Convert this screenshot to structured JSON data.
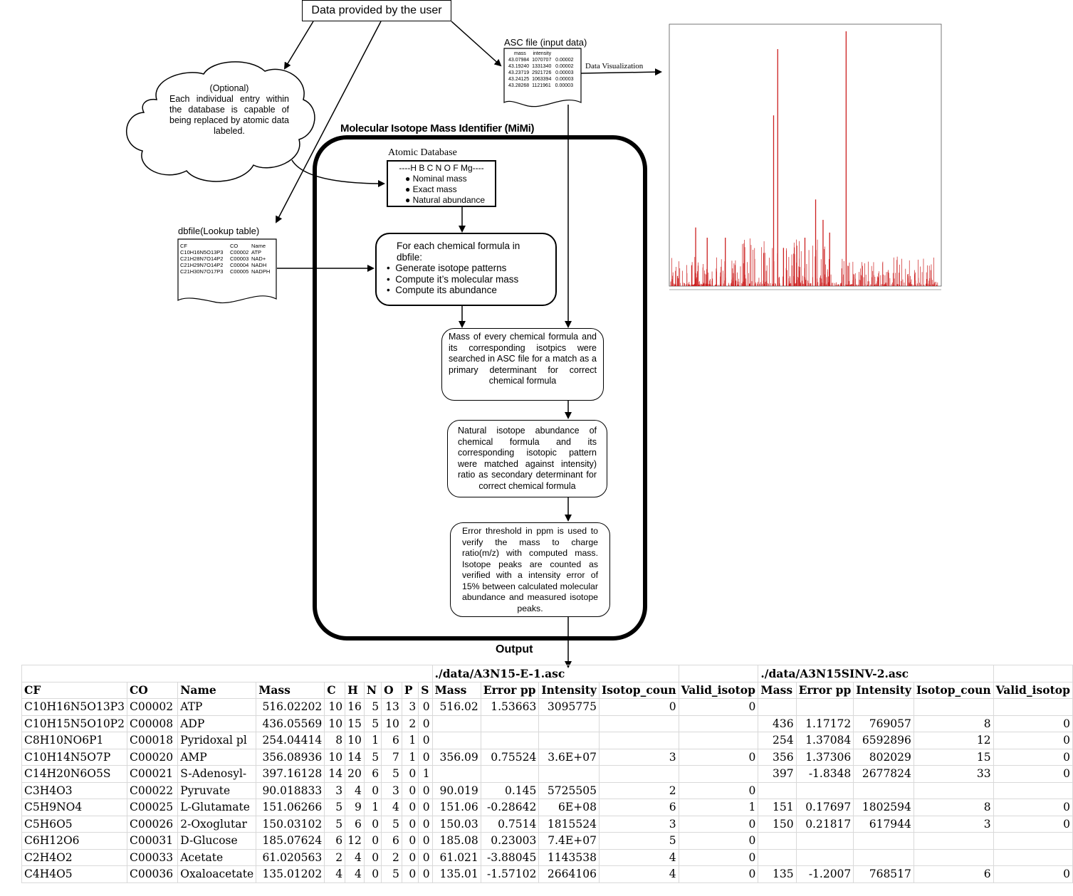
{
  "user_data_box": "Data provided by the user",
  "asc_file": {
    "title": "ASC file (input  data)",
    "header": "mass     intensity",
    "rows": [
      "43.07984  1070707   0.00002",
      "43.19240  1331340   0.00002",
      "43.23719  2921726   0.00003",
      "43.24125  1063394   0.00003",
      "43.28268  1121961   0.00003"
    ]
  },
  "data_visualization_label": "Data Visualization",
  "optional_cloud": {
    "heading": "(Optional)",
    "body": "Each individual entry within the database is capable of being replaced by atomic data labeled."
  },
  "mimi_title": "Molecular Isotope Mass Identifier (MiMi)",
  "atomic_database": {
    "title": "Atomic Database",
    "elements": "H B C N O F Mg",
    "items": [
      "Nominal mass",
      "Exact mass",
      "Natural abundance"
    ]
  },
  "dbfile": {
    "title": "dbfile(Lookup table)",
    "header": [
      "CF",
      "CO",
      "Name"
    ],
    "rows": [
      [
        "C10H16N5O13P3",
        "C00002",
        "ATP"
      ],
      [
        "C21H28N7O14P2",
        "C00003",
        "NAD+"
      ],
      [
        "C21H29N7O14P2",
        "C00004",
        "NADH"
      ],
      [
        "C21H30N7O17P3",
        "C00005",
        "NADPH"
      ]
    ]
  },
  "steps": {
    "step1_heading": "For each chemical formula in dbfile:",
    "step1_bullets": [
      "Generate isotope patterns",
      "Compute it’s molecular mass",
      "Compute its abundance"
    ],
    "step2": "Mass of every chemical formula and its corresponding isotpics were searched in ASC file for a match as a primary determinant for correct chemical formula",
    "step3": "Natural isotope abundance of chemical formula and its corresponding isotopic pattern were matched against intensity) ratio as secondary determinant for correct chemical formula",
    "step4": "Error threshold in ppm is used to verify the mass to charge ratio(m/z) with computed mass. Isotope peaks are counted as verified with a intensity error of 15% between calculated molecular abundance and measured isotope peaks."
  },
  "output_label": "Output",
  "colors": {
    "spectrum": "#cc1f1f",
    "border": "#000000",
    "grid": "#d9d9d9"
  },
  "table": {
    "file1": "./data/A3N15-E-1.asc",
    "file2": "./data/A3N15SINV-2.asc",
    "headers": [
      "CF",
      "CO",
      "Name",
      "Mass",
      "C",
      "H",
      "N",
      "O",
      "P",
      "S",
      "Mass",
      "Error pp",
      "Intensity",
      "Isotop_coun",
      "Valid_isotop",
      "Mass",
      "Error pp",
      "Intensity",
      "Isotop_coun",
      "Valid_isotop"
    ],
    "rows": [
      [
        "C10H16N5O13P3",
        "C00002",
        "ATP",
        "516.02202",
        "10",
        "16",
        "5",
        "13",
        "3",
        "0",
        "516.02",
        "1.53663",
        "3095775",
        "0",
        "0",
        "",
        "",
        "",
        "",
        ""
      ],
      [
        "C10H15N5O10P2",
        "C00008",
        "ADP",
        "436.05569",
        "10",
        "15",
        "5",
        "10",
        "2",
        "0",
        "",
        "",
        "",
        "",
        "",
        "436",
        "1.17172",
        "769057",
        "8",
        "0"
      ],
      [
        "C8H10NO6P1",
        "C00018",
        "Pyridoxal pl",
        "254.04414",
        "8",
        "10",
        "1",
        "6",
        "1",
        "0",
        "",
        "",
        "",
        "",
        "",
        "254",
        "1.37084",
        "6592896",
        "12",
        "0"
      ],
      [
        "C10H14N5O7P",
        "C00020",
        "AMP",
        "356.08936",
        "10",
        "14",
        "5",
        "7",
        "1",
        "0",
        "356.09",
        "0.75524",
        "3.6E+07",
        "3",
        "0",
        "356",
        "1.37306",
        "802029",
        "15",
        "0"
      ],
      [
        "C14H20N6O5S",
        "C00021",
        "S-Adenosyl-",
        "397.16128",
        "14",
        "20",
        "6",
        "5",
        "0",
        "1",
        "",
        "",
        "",
        "",
        "",
        "397",
        "-1.8348",
        "2677824",
        "33",
        "0"
      ],
      [
        "C3H4O3",
        "C00022",
        "Pyruvate",
        "90.018833",
        "3",
        "4",
        "0",
        "3",
        "0",
        "0",
        "90.019",
        "0.145",
        "5725505",
        "2",
        "0",
        "",
        "",
        "",
        "",
        ""
      ],
      [
        "C5H9NO4",
        "C00025",
        "L-Glutamate",
        "151.06266",
        "5",
        "9",
        "1",
        "4",
        "0",
        "0",
        "151.06",
        "-0.28642",
        "6E+08",
        "6",
        "1",
        "151",
        "0.17697",
        "1802594",
        "8",
        "0"
      ],
      [
        "C5H6O5",
        "C00026",
        "2-Oxoglutar",
        "150.03102",
        "5",
        "6",
        "0",
        "5",
        "0",
        "0",
        "150.03",
        "0.7514",
        "1815524",
        "3",
        "0",
        "150",
        "0.21817",
        "617944",
        "3",
        "0"
      ],
      [
        "C6H12O6",
        "C00031",
        "D-Glucose",
        "185.07624",
        "6",
        "12",
        "0",
        "6",
        "0",
        "0",
        "185.08",
        "0.23003",
        "7.4E+07",
        "5",
        "0",
        "",
        "",
        "",
        "",
        ""
      ],
      [
        "C2H4O2",
        "C00033",
        "Acetate",
        "61.020563",
        "2",
        "4",
        "0",
        "2",
        "0",
        "0",
        "61.021",
        "-3.88045",
        "1143538",
        "4",
        "0",
        "",
        "",
        "",
        "",
        ""
      ],
      [
        "C4H4O5",
        "C00036",
        "Oxaloacetate",
        "135.01202",
        "4",
        "4",
        "0",
        "5",
        "0",
        "0",
        "135.01",
        "-1.57102",
        "2664106",
        "4",
        "0",
        "135",
        "-1.2007",
        "768517",
        "6",
        "0"
      ]
    ]
  },
  "chart_data": {
    "type": "line",
    "title": "",
    "xlabel": "",
    "ylabel": "",
    "series": [
      {
        "name": "",
        "x": [
          40,
          62,
          76,
          98,
          110,
          122,
          127,
          134,
          160,
          173,
          182,
          190,
          210
        ],
        "y": [
          0.04,
          0.23,
          0.19,
          0.19,
          0.13,
          0.67,
          0.93,
          0.15,
          0.19,
          0.34,
          0.26,
          0.21,
          1.0
        ]
      }
    ]
  }
}
